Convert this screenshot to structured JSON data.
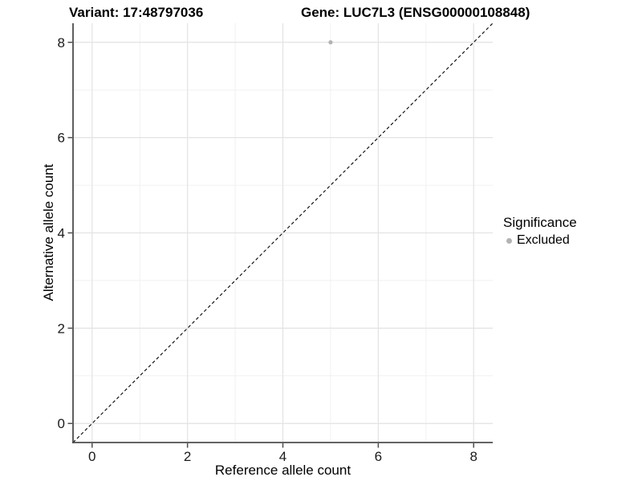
{
  "header": {
    "variant_title": "Variant: 17:48797036",
    "gene_title": "Gene: LUC7L3 (ENSG00000108848)"
  },
  "axes": {
    "x_label": "Reference allele count",
    "y_label": "Alternative allele count"
  },
  "legend": {
    "title": "Significance",
    "items": [
      {
        "label": "Excluded",
        "color": "#b3b3b3"
      }
    ]
  },
  "chart_data": {
    "type": "scatter",
    "title": "Variant: 17:48797036   Gene: LUC7L3 (ENSG00000108848)",
    "xlabel": "Reference allele count",
    "ylabel": "Alternative allele count",
    "xlim": [
      -0.4,
      8.4
    ],
    "ylim": [
      -0.4,
      8.4
    ],
    "x_ticks": [
      0,
      2,
      4,
      6,
      8
    ],
    "y_ticks": [
      0,
      2,
      4,
      6,
      8
    ],
    "x_minor_ticks": [
      1,
      3,
      5,
      7
    ],
    "y_minor_ticks": [
      1,
      3,
      5,
      7
    ],
    "grid": true,
    "legend_position": "right",
    "series": [
      {
        "name": "Excluded",
        "color": "#b3b3b3",
        "points": [
          {
            "x": 5,
            "y": 8
          }
        ]
      }
    ],
    "reference_line": {
      "kind": "abline",
      "slope": 1,
      "intercept": 0,
      "style": "dashed",
      "color": "#000000"
    }
  },
  "colors": {
    "point": "#b3b3b3",
    "major_grid": "#e3e3e3",
    "minor_grid": "#f1f1f1",
    "axis_line": "#4d4d4d",
    "tick_label": "#1a1a1a",
    "background": "#ffffff"
  }
}
